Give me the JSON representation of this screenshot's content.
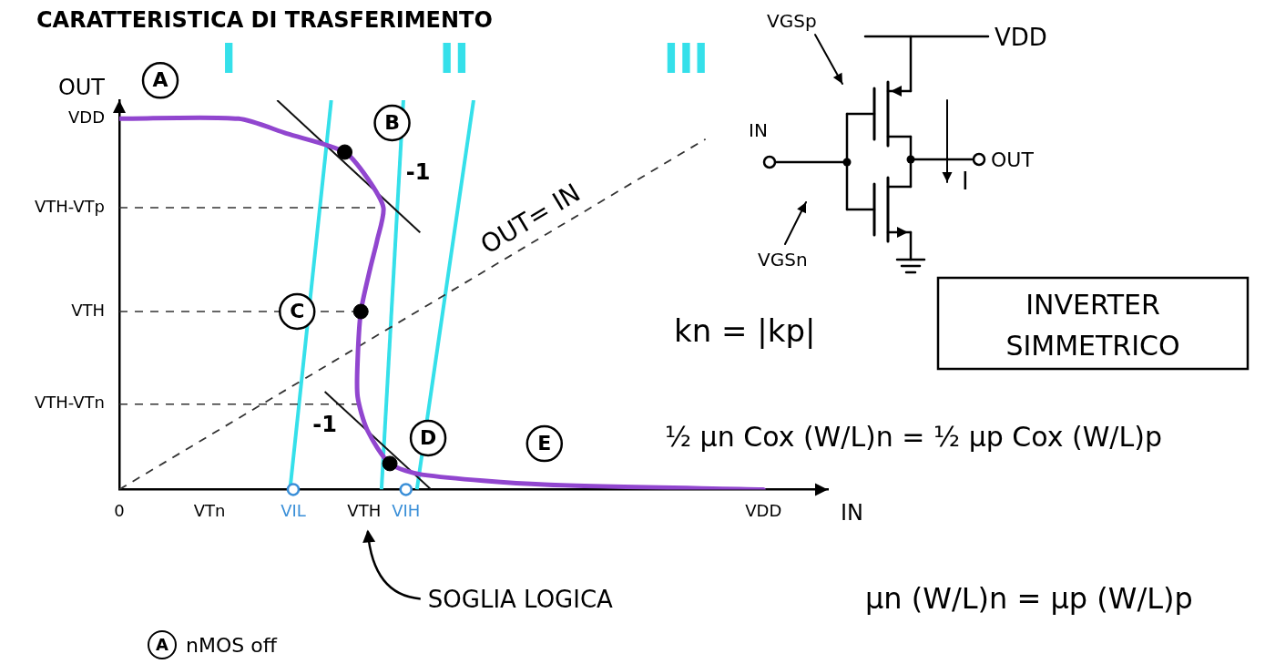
{
  "chart_data": {
    "type": "line",
    "title": "CARATTERISTICA DI TRASFERIMENTO",
    "x_label": "IN",
    "y_label": "OUT",
    "xlim": [
      0,
      11
    ],
    "ylim": [
      0,
      10.5
    ],
    "xticks": [
      0,
      {
        "value": 1.4,
        "label": "VTn"
      },
      {
        "value": 2.7,
        "label": "VIL"
      },
      {
        "value": 3.8,
        "label": "VTH"
      },
      {
        "value": 4.45,
        "label": "VIH"
      },
      {
        "value": 10,
        "label": "VDD"
      }
    ],
    "yticks": [
      {
        "value": 2.3,
        "label": "VTH-VTn"
      },
      {
        "value": 4.8,
        "label": "VTH"
      },
      {
        "value": 7.6,
        "label": "VTH-VTp"
      },
      {
        "value": 10,
        "label": "VDD"
      }
    ],
    "grid": false,
    "series": [
      {
        "color": "#9146cf",
        "line_style": "solid",
        "x": [
          0,
          1.85,
          2.6,
          3.5,
          3.85,
          4.1,
          4.0,
          3.9,
          3.75,
          3.7,
          3.7,
          3.85,
          4.2,
          4.7,
          6.6,
          10
        ],
        "values": [
          10,
          10,
          9.6,
          9.1,
          8.4,
          7.6,
          6.7,
          6.0,
          4.8,
          3.5,
          2.5,
          1.6,
          0.7,
          0.4,
          0.13,
          0
        ]
      }
    ],
    "identity_line": {
      "label": "OUT= IN",
      "color": "#333333",
      "line_style": "dashed",
      "x": [
        0,
        9.1
      ],
      "values": [
        0,
        9.45
      ]
    },
    "guides": {
      "color": "#333333",
      "line_style": "dashed",
      "lines": [
        {
          "x": [
            0,
            4.1
          ],
          "values": [
            7.6,
            7.6
          ]
        },
        {
          "x": [
            0,
            3.75
          ],
          "values": [
            4.8,
            4.8
          ]
        },
        {
          "x": [
            0,
            3.7
          ],
          "values": [
            2.3,
            2.3
          ]
        }
      ]
    },
    "tangents": {
      "color": "#111111",
      "lines": [
        {
          "label": "-1",
          "x": [
            2.45,
            4.67
          ],
          "values": [
            10.5,
            6.93
          ]
        },
        {
          "label": "-1",
          "x": [
            3.19,
            4.84
          ],
          "values": [
            2.64,
            0
          ]
        }
      ]
    },
    "regions": {
      "labels": [
        "I",
        "II",
        "III"
      ],
      "color": "#35e0ea",
      "boundaries": [
        {
          "x": [
            2.65,
            3.29
          ],
          "values": [
            0,
            10.5
          ]
        },
        {
          "x": [
            4.07,
            4.41
          ],
          "values": [
            0,
            10.5
          ]
        },
        {
          "x": [
            4.62,
            5.5
          ],
          "values": [
            0,
            10.5
          ]
        }
      ]
    },
    "points": [
      {
        "label": "A",
        "x": 0,
        "y": 10
      },
      {
        "label": "B",
        "x": 3.5,
        "y": 9.1,
        "marker": "dot"
      },
      {
        "label": "C",
        "x": 3.75,
        "y": 4.8,
        "marker": "dot"
      },
      {
        "label": "D",
        "x": 4.2,
        "y": 0.7,
        "marker": "dot"
      },
      {
        "label": "E",
        "x": 6.6,
        "y": 0.13
      }
    ],
    "axis_markers": {
      "color": "#3a8fd8",
      "x": [
        2.7,
        4.45
      ],
      "values": [
        0,
        0
      ]
    },
    "annotation": "SOGLIA LOGICA",
    "note": {
      "label": "A",
      "text": "nMOS off"
    }
  },
  "circuit": {
    "supply": "VDD",
    "vgs_p": "VGSp",
    "input": "IN",
    "output": "OUT",
    "current": "I",
    "vgs_n": "VGSn"
  },
  "formulas": {
    "condition": "kn = |kp|",
    "box": "INVERTER SIMMETRICO",
    "equation_1": "½ μn Cox (W/L)n = ½ μp Cox (W/L)p",
    "equation_2": "μn (W/L)n = μp (W/L)p"
  }
}
